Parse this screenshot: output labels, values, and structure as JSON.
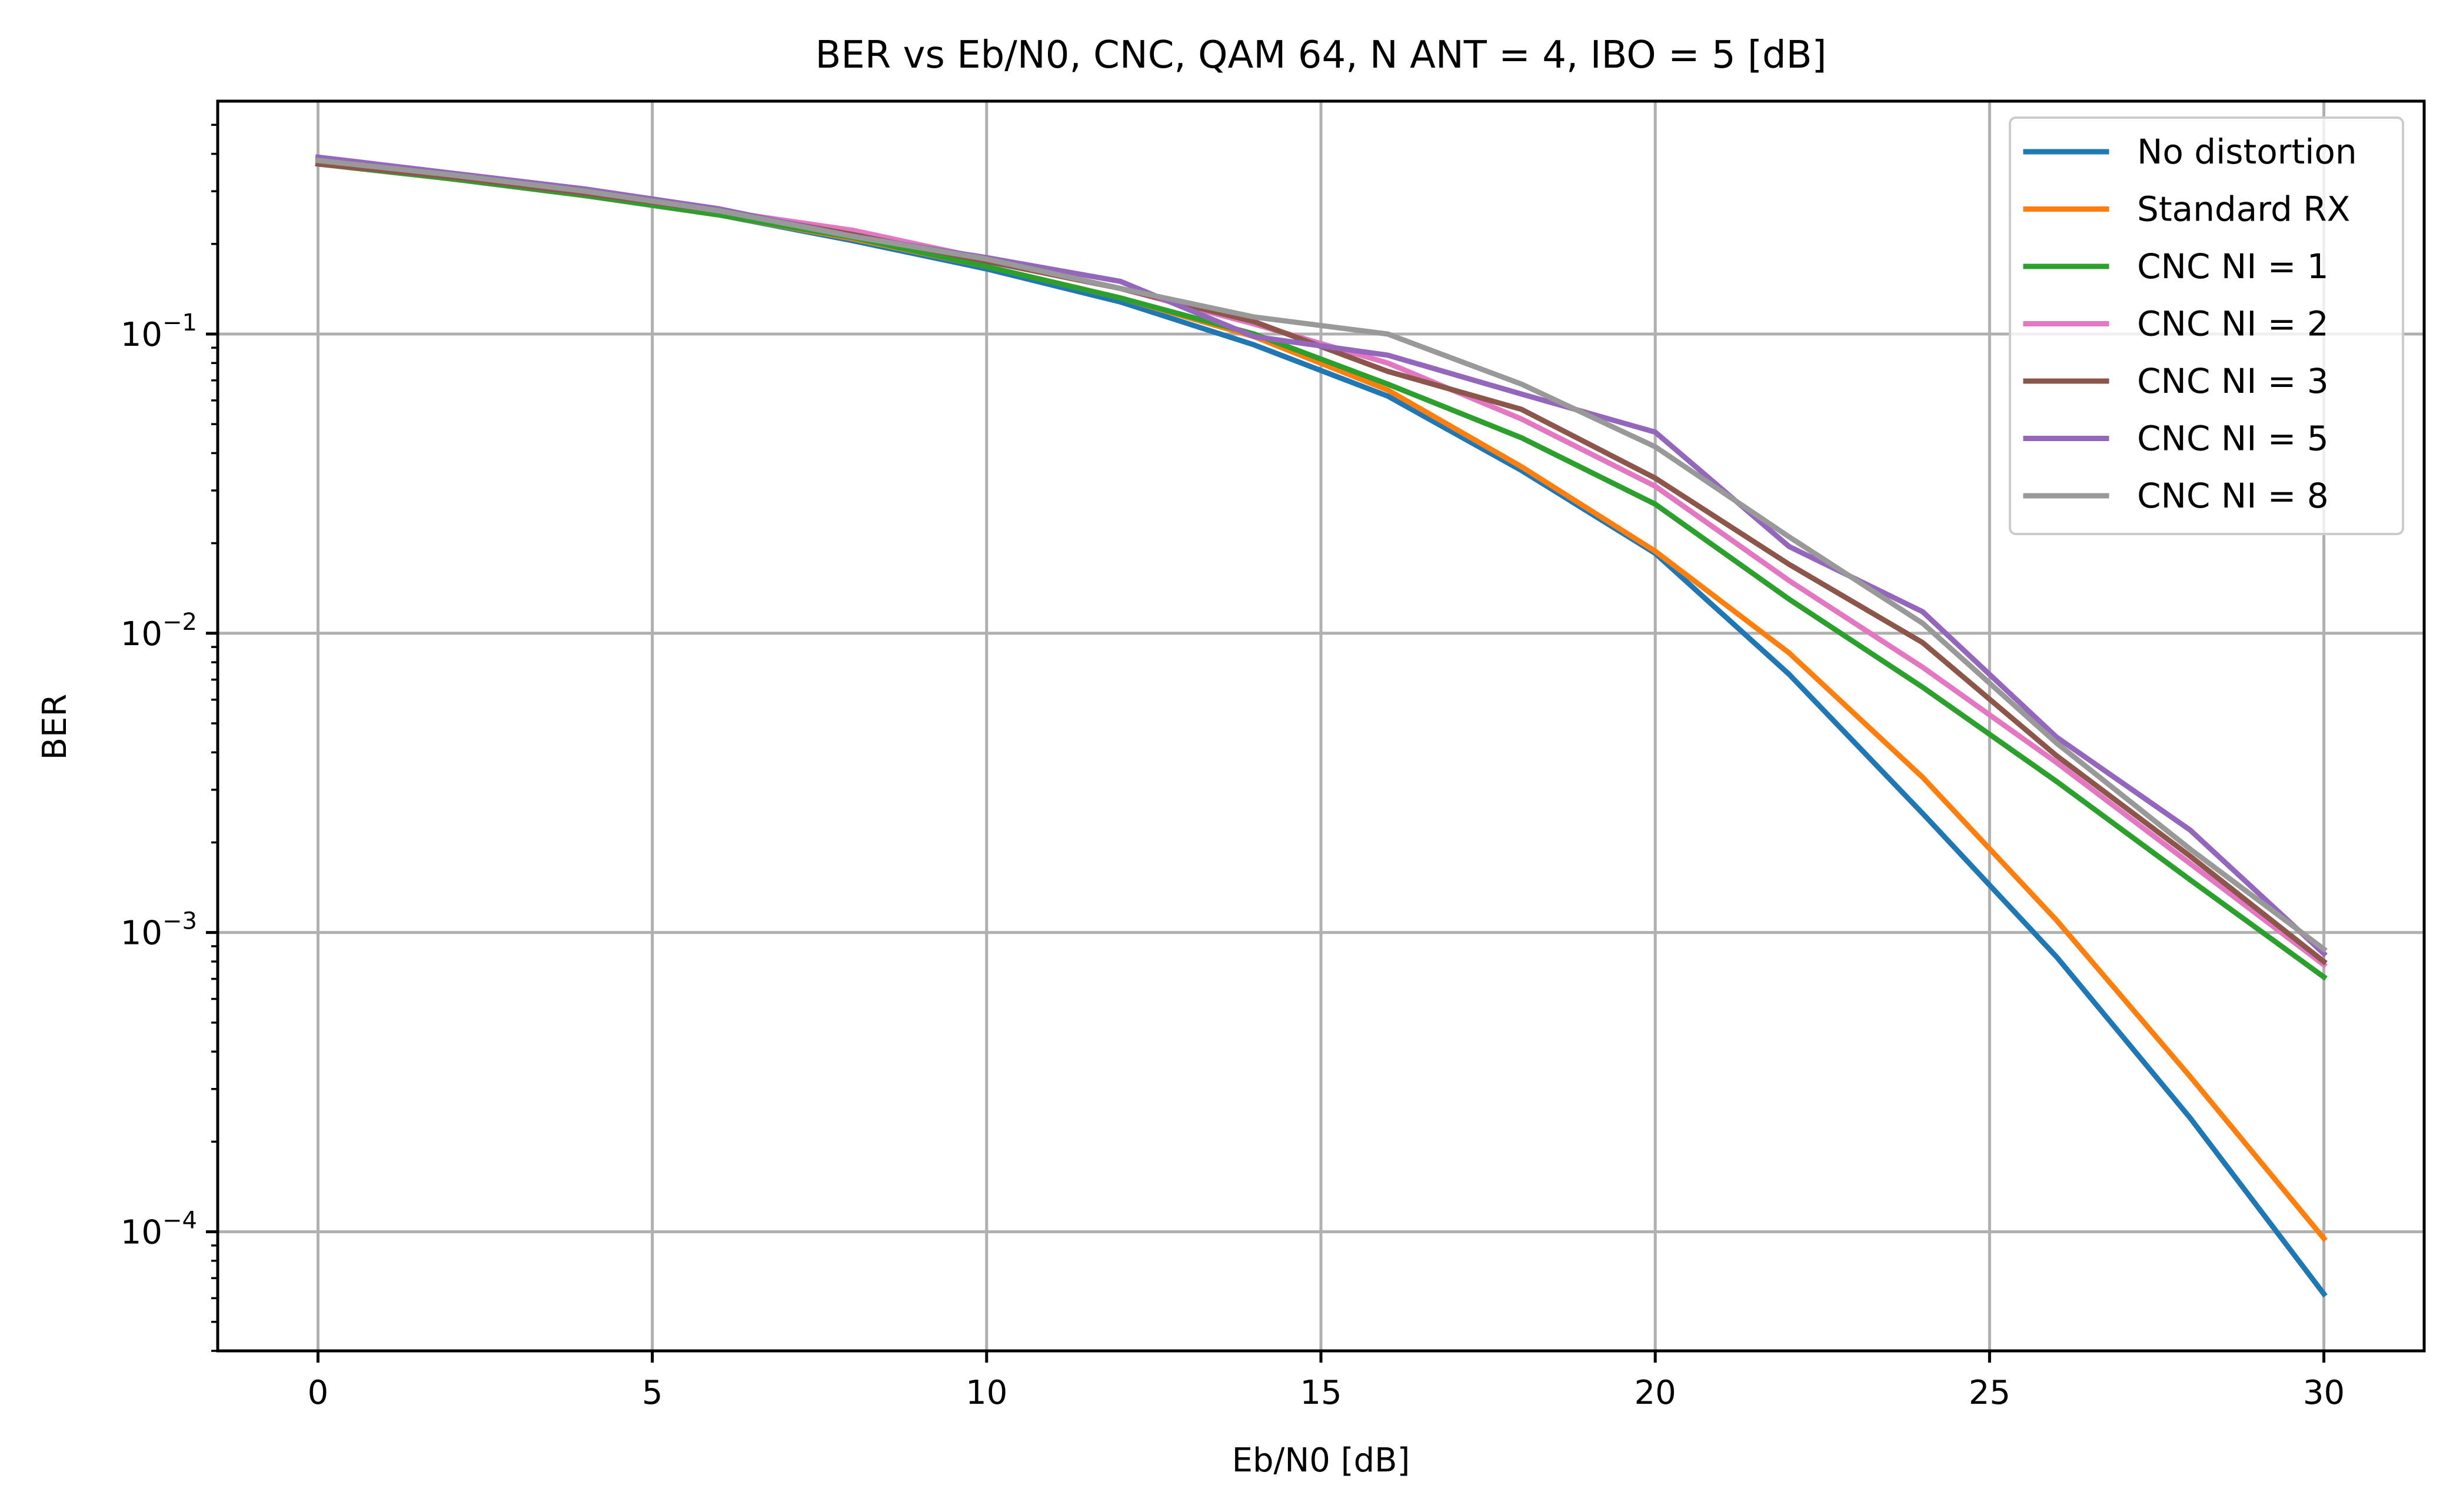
{
  "chart_data": {
    "type": "line",
    "title": "BER vs Eb/N0, CNC, QAM 64, N ANT = 4, IBO = 5 [dB]",
    "xlabel": "Eb/N0 [dB]",
    "ylabel": "BER",
    "x_scale": "linear",
    "y_scale": "log",
    "xlim": [
      -1.5,
      31.5
    ],
    "ylim": [
      4e-05,
      0.6
    ],
    "x_ticks": [
      0,
      5,
      10,
      15,
      20,
      25,
      30
    ],
    "x_tick_labels": [
      "0",
      "5",
      "10",
      "15",
      "20",
      "25",
      "30"
    ],
    "y_ticks": [
      0.0001,
      0.001,
      0.01,
      0.1
    ],
    "y_tick_labels": [
      {
        "base": "10",
        "exp": "−4"
      },
      {
        "base": "10",
        "exp": "−3"
      },
      {
        "base": "10",
        "exp": "−2"
      },
      {
        "base": "10",
        "exp": "−1"
      }
    ],
    "grid": true,
    "legend_position": "top-right",
    "x": [
      0,
      2,
      4,
      6,
      8,
      10,
      12,
      14,
      16,
      18,
      20,
      22,
      24,
      26,
      28,
      30
    ],
    "series": [
      {
        "name": "No distortion",
        "color": "#1f77b4",
        "values": [
          0.37,
          0.33,
          0.29,
          0.25,
          0.205,
          0.165,
          0.128,
          0.092,
          0.062,
          0.035,
          0.0185,
          0.0073,
          0.0025,
          0.00083,
          0.00024,
          6.2e-05
        ]
      },
      {
        "name": "Standard RX",
        "color": "#ff7f0e",
        "values": [
          0.37,
          0.33,
          0.29,
          0.25,
          0.208,
          0.168,
          0.132,
          0.098,
          0.065,
          0.036,
          0.0188,
          0.0086,
          0.0033,
          0.0011,
          0.00033,
          9.5e-05
        ]
      },
      {
        "name": "CNC NI = 1",
        "color": "#2ca02c",
        "values": [
          0.37,
          0.33,
          0.29,
          0.25,
          0.21,
          0.168,
          0.132,
          0.1,
          0.068,
          0.045,
          0.027,
          0.013,
          0.0066,
          0.0032,
          0.0015,
          0.00071
        ]
      },
      {
        "name": "CNC NI = 2",
        "color": "#e377c2",
        "values": [
          0.37,
          0.335,
          0.295,
          0.258,
          0.222,
          0.178,
          0.142,
          0.108,
          0.08,
          0.052,
          0.031,
          0.015,
          0.0077,
          0.0037,
          0.0017,
          0.00078
        ]
      },
      {
        "name": "CNC NI = 3",
        "color": "#8c564b",
        "values": [
          0.37,
          0.335,
          0.295,
          0.258,
          0.215,
          0.175,
          0.142,
          0.11,
          0.075,
          0.056,
          0.033,
          0.017,
          0.0093,
          0.0039,
          0.0018,
          0.0008
        ]
      },
      {
        "name": "CNC NI = 5",
        "color": "#9467bd",
        "values": [
          0.39,
          0.345,
          0.305,
          0.262,
          0.212,
          0.18,
          0.15,
          0.098,
          0.085,
          0.063,
          0.047,
          0.0195,
          0.0118,
          0.0045,
          0.0022,
          0.00085
        ]
      },
      {
        "name": "CNC NI = 8",
        "color": "#999999",
        "values": [
          0.38,
          0.34,
          0.3,
          0.258,
          0.212,
          0.178,
          0.142,
          0.114,
          0.1,
          0.068,
          0.042,
          0.021,
          0.0108,
          0.0043,
          0.0019,
          0.00088
        ]
      }
    ]
  }
}
